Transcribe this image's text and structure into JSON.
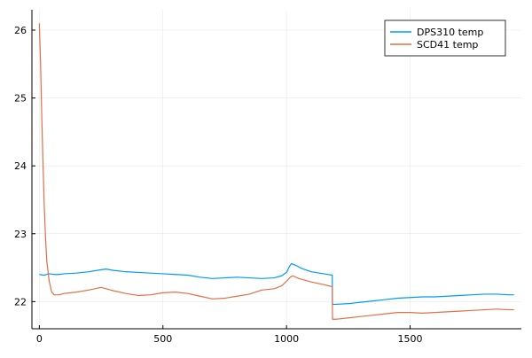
{
  "chart_data": {
    "type": "line",
    "title": "",
    "xlabel": "",
    "ylabel": "",
    "xlim": [
      -30,
      1950
    ],
    "ylim": [
      21.6,
      26.3
    ],
    "x_ticks": [
      0,
      500,
      1000,
      1500
    ],
    "x_tick_labels": [
      "0",
      "500",
      "1000",
      "1500"
    ],
    "y_ticks": [
      22,
      23,
      24,
      25,
      26
    ],
    "y_tick_labels": [
      "22",
      "23",
      "24",
      "25",
      "26"
    ],
    "grid": true,
    "legend_position": "top-right",
    "series": [
      {
        "name": "DPS310 temp",
        "color": "#009AFA",
        "points": [
          [
            0,
            22.4
          ],
          [
            20,
            22.39
          ],
          [
            40,
            22.41
          ],
          [
            60,
            22.4
          ],
          [
            80,
            22.4
          ],
          [
            100,
            22.41
          ],
          [
            150,
            22.42
          ],
          [
            200,
            22.44
          ],
          [
            250,
            22.47
          ],
          [
            270,
            22.48
          ],
          [
            300,
            22.46
          ],
          [
            350,
            22.44
          ],
          [
            400,
            22.43
          ],
          [
            450,
            22.42
          ],
          [
            500,
            22.41
          ],
          [
            550,
            22.4
          ],
          [
            600,
            22.39
          ],
          [
            650,
            22.36
          ],
          [
            700,
            22.34
          ],
          [
            750,
            22.35
          ],
          [
            800,
            22.36
          ],
          [
            850,
            22.35
          ],
          [
            900,
            22.34
          ],
          [
            950,
            22.35
          ],
          [
            980,
            22.38
          ],
          [
            1000,
            22.43
          ],
          [
            1012,
            22.52
          ],
          [
            1020,
            22.56
          ],
          [
            1040,
            22.53
          ],
          [
            1060,
            22.49
          ],
          [
            1100,
            22.44
          ],
          [
            1150,
            22.41
          ],
          [
            1185,
            22.39
          ],
          [
            1186,
            21.96
          ],
          [
            1200,
            21.96
          ],
          [
            1250,
            21.97
          ],
          [
            1300,
            21.99
          ],
          [
            1350,
            22.01
          ],
          [
            1400,
            22.03
          ],
          [
            1450,
            22.05
          ],
          [
            1500,
            22.06
          ],
          [
            1550,
            22.07
          ],
          [
            1600,
            22.07
          ],
          [
            1650,
            22.08
          ],
          [
            1700,
            22.09
          ],
          [
            1750,
            22.1
          ],
          [
            1800,
            22.11
          ],
          [
            1850,
            22.11
          ],
          [
            1900,
            22.1
          ],
          [
            1920,
            22.1
          ]
        ]
      },
      {
        "name": "SCD41 temp",
        "color": "#E26F46",
        "points": [
          [
            0,
            26.1
          ],
          [
            5,
            25.5
          ],
          [
            10,
            24.7
          ],
          [
            15,
            24.0
          ],
          [
            20,
            23.4
          ],
          [
            25,
            22.95
          ],
          [
            30,
            22.6
          ],
          [
            40,
            22.3
          ],
          [
            50,
            22.14
          ],
          [
            60,
            22.1
          ],
          [
            80,
            22.1
          ],
          [
            100,
            22.12
          ],
          [
            150,
            22.14
          ],
          [
            200,
            22.17
          ],
          [
            250,
            22.21
          ],
          [
            280,
            22.18
          ],
          [
            300,
            22.16
          ],
          [
            350,
            22.12
          ],
          [
            400,
            22.09
          ],
          [
            450,
            22.1
          ],
          [
            500,
            22.13
          ],
          [
            550,
            22.14
          ],
          [
            600,
            22.12
          ],
          [
            650,
            22.08
          ],
          [
            700,
            22.04
          ],
          [
            750,
            22.05
          ],
          [
            800,
            22.08
          ],
          [
            850,
            22.11
          ],
          [
            900,
            22.17
          ],
          [
            950,
            22.19
          ],
          [
            980,
            22.23
          ],
          [
            1000,
            22.3
          ],
          [
            1015,
            22.36
          ],
          [
            1025,
            22.38
          ],
          [
            1050,
            22.34
          ],
          [
            1100,
            22.29
          ],
          [
            1150,
            22.25
          ],
          [
            1185,
            22.22
          ],
          [
            1186,
            21.74
          ],
          [
            1200,
            21.74
          ],
          [
            1250,
            21.76
          ],
          [
            1300,
            21.78
          ],
          [
            1350,
            21.8
          ],
          [
            1400,
            21.82
          ],
          [
            1450,
            21.84
          ],
          [
            1500,
            21.84
          ],
          [
            1550,
            21.83
          ],
          [
            1600,
            21.84
          ],
          [
            1650,
            21.85
          ],
          [
            1700,
            21.86
          ],
          [
            1750,
            21.87
          ],
          [
            1800,
            21.88
          ],
          [
            1850,
            21.89
          ],
          [
            1900,
            21.88
          ],
          [
            1920,
            21.88
          ]
        ]
      }
    ]
  }
}
